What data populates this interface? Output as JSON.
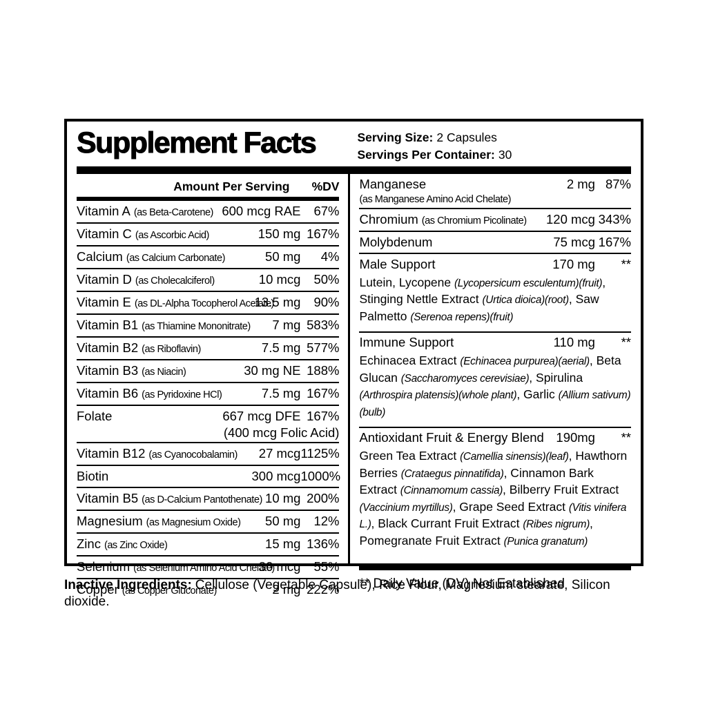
{
  "colors": {
    "ink": "#000000",
    "paper": "#ffffff"
  },
  "label": {
    "title": "Supplement Facts",
    "serving_size_label": "Serving Size:",
    "serving_size_value": "2 Capsules",
    "servings_per_container_label": "Servings Per Container:",
    "servings_per_container_value": "30",
    "amount_header": "Amount Per Serving",
    "dv_header": "%DV",
    "left_rows": [
      {
        "name": "Vitamin A",
        "form": "(as Beta-Carotene)",
        "amount": "600 mcg RAE",
        "dv": "67%"
      },
      {
        "name": "Vitamin C",
        "form": "(as Ascorbic Acid)",
        "amount": "150 mg",
        "dv": "167%"
      },
      {
        "name": "Calcium",
        "form": "(as Calcium Carbonate)",
        "amount": "50 mg",
        "dv": "4%"
      },
      {
        "name": "Vitamin D",
        "form": "(as Cholecalciferol)",
        "amount": "10 mcg",
        "dv": "50%"
      },
      {
        "name": "Vitamin E",
        "form": "(as DL-Alpha Tocopherol Acetate)",
        "amount": "13.5 mg",
        "dv": "90%"
      },
      {
        "name": "Vitamin B1",
        "form": "(as Thiamine Mononitrate)",
        "amount": "7 mg",
        "dv": "583%"
      },
      {
        "name": "Vitamin B2",
        "form": "(as Riboflavin)",
        "amount": "7.5 mg",
        "dv": "577%"
      },
      {
        "name": "Vitamin B3",
        "form": "(as Niacin)",
        "amount": "30 mg NE",
        "dv": "188%"
      },
      {
        "name": "Vitamin B6",
        "form": "(as Pyridoxine HCl)",
        "amount": "7.5 mg",
        "dv": "167%"
      },
      {
        "name": "Folate",
        "form": "",
        "amount": "667 mcg DFE",
        "amount2": "(400 mcg Folic Acid)",
        "dv": "167%"
      },
      {
        "name": "Vitamin B12",
        "form": "(as Cyanocobalamin)",
        "amount": "27 mcg",
        "dv": "1125%"
      },
      {
        "name": "Biotin",
        "form": "",
        "amount": "300 mcg",
        "dv": "1000%"
      },
      {
        "name": "Vitamin B5",
        "form": "(as D-Calcium Pantothenate)",
        "amount": "10 mg",
        "dv": "200%"
      },
      {
        "name": "Magnesium",
        "form": "(as Magnesium Oxide)",
        "amount": "50 mg",
        "dv": "12%"
      },
      {
        "name": "Zinc",
        "form": "(as Zinc Oxide)",
        "amount": "15 mg",
        "dv": "136%"
      },
      {
        "name": "Selenium",
        "form": "(as Selenium Amino Acid Chelate)",
        "amount": "30 mcg",
        "dv": "55%"
      },
      {
        "name": "Copper",
        "form": "(as Copper Gluconate)",
        "amount": "2 mg",
        "dv": "222%"
      }
    ],
    "right_rows": [
      {
        "name": "Manganese",
        "form_below": "(as Manganese Amino Acid Chelate)",
        "amount": "2 mg",
        "dv": "87%"
      },
      {
        "name": "Chromium",
        "form": "(as Chromium Picolinate)",
        "amount": "120 mcg",
        "dv": "343%"
      },
      {
        "name": "Molybdenum",
        "form": "",
        "amount": "75 mcg",
        "dv": "167%"
      },
      {
        "name": "Male Support",
        "form": "",
        "amount": "170 mg",
        "dv": "**",
        "desc": [
          {
            "t": "Lutein, Lycopene ",
            "i": false
          },
          {
            "t": "(Lycopersicum esculentum)(fruit)",
            "i": true
          },
          {
            "t": ", Stinging Nettle Extract ",
            "i": false
          },
          {
            "t": "(Urtica dioica)(root)",
            "i": true
          },
          {
            "t": ", Saw Palmetto ",
            "i": false
          },
          {
            "t": "(Serenoa repens)(fruit)",
            "i": true
          }
        ]
      },
      {
        "name": "Immune Support",
        "form": "",
        "amount": "110 mg",
        "dv": "**",
        "desc": [
          {
            "t": "Echinacea Extract ",
            "i": false
          },
          {
            "t": "(Echinacea purpurea)(aerial)",
            "i": true
          },
          {
            "t": ", Beta Glucan ",
            "i": false
          },
          {
            "t": "(Saccharomyces cerevisiae)",
            "i": true
          },
          {
            "t": ", Spirulina ",
            "i": false
          },
          {
            "t": "(Arthrospira platensis)(whole plant)",
            "i": true
          },
          {
            "t": ", Garlic ",
            "i": false
          },
          {
            "t": "(Allium sativum)(bulb)",
            "i": true
          }
        ]
      },
      {
        "name": "Antioxidant Fruit & Energy Blend",
        "form": "",
        "amount": "190mg",
        "dv": "**",
        "desc": [
          {
            "t": "Green Tea Extract ",
            "i": false
          },
          {
            "t": "(Camellia sinensis)(leaf)",
            "i": true
          },
          {
            "t": ", Hawthorn Berries ",
            "i": false
          },
          {
            "t": "(Crataegus pinnatifida)",
            "i": true
          },
          {
            "t": ", Cinnamon Bark Extract ",
            "i": false
          },
          {
            "t": "(Cinnamomum cassia)",
            "i": true
          },
          {
            "t": ", Bilberry Fruit Extract ",
            "i": false
          },
          {
            "t": "(Vaccinium myrtillus)",
            "i": true
          },
          {
            "t": ", Grape Seed Extract ",
            "i": false
          },
          {
            "t": "(Vitis vinifera L.)",
            "i": true
          },
          {
            "t": ", Black Currant Fruit Extract ",
            "i": false
          },
          {
            "t": "(Ribes nigrum)",
            "i": true
          },
          {
            "t": ", Pomegranate Fruit Extract ",
            "i": false
          },
          {
            "t": "(Punica granatum)",
            "i": true
          }
        ]
      }
    ],
    "footnote": "** Daily Value (DV) Not Established"
  },
  "inactive": {
    "label": "Inactive Ingredients:",
    "value": "Cellulose (Vegetable Capsule), Rice Flour, Magnesium stearate, Silicon dioxide."
  }
}
